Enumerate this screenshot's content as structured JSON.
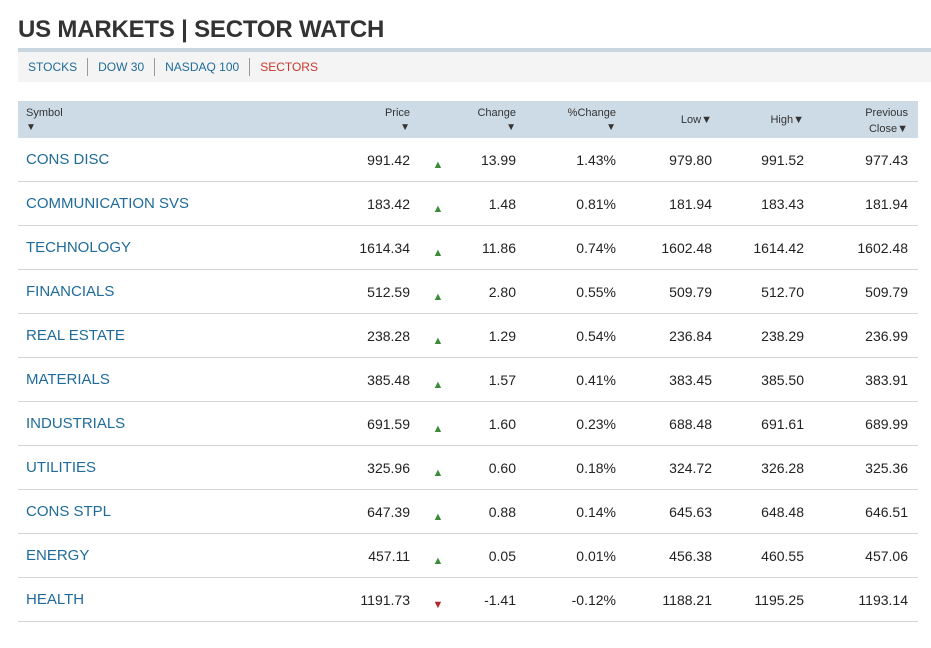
{
  "page": {
    "title": "US MARKETS | SECTOR WATCH"
  },
  "tabs": [
    {
      "label": "STOCKS",
      "active": false
    },
    {
      "label": "DOW 30",
      "active": false
    },
    {
      "label": "NASDAQ 100",
      "active": false
    },
    {
      "label": "SECTORS",
      "active": true
    }
  ],
  "colors": {
    "link": "#1f6b99",
    "active_tab": "#c8382c",
    "up": "#3c8c3c",
    "down": "#b3262c",
    "header_bg": "#ccdbe6"
  },
  "table": {
    "headers": {
      "symbol": "Symbol",
      "price": "Price",
      "change": "Change",
      "pct_change": "%Change",
      "low": "Low",
      "high": "High",
      "prev_line1": "Previous",
      "prev_line2": "Close",
      "sort_arrow": "▼"
    },
    "rows": [
      {
        "symbol": "CONS DISC",
        "price": "991.42",
        "direction": "up",
        "change": "13.99",
        "pct": "1.43%",
        "low": "979.80",
        "high": "991.52",
        "prev": "977.43"
      },
      {
        "symbol": "COMMUNICATION SVS",
        "price": "183.42",
        "direction": "up",
        "change": "1.48",
        "pct": "0.81%",
        "low": "181.94",
        "high": "183.43",
        "prev": "181.94"
      },
      {
        "symbol": "TECHNOLOGY",
        "price": "1614.34",
        "direction": "up",
        "change": "11.86",
        "pct": "0.74%",
        "low": "1602.48",
        "high": "1614.42",
        "prev": "1602.48"
      },
      {
        "symbol": "FINANCIALS",
        "price": "512.59",
        "direction": "up",
        "change": "2.80",
        "pct": "0.55%",
        "low": "509.79",
        "high": "512.70",
        "prev": "509.79"
      },
      {
        "symbol": "REAL ESTATE",
        "price": "238.28",
        "direction": "up",
        "change": "1.29",
        "pct": "0.54%",
        "low": "236.84",
        "high": "238.29",
        "prev": "236.99"
      },
      {
        "symbol": "MATERIALS",
        "price": "385.48",
        "direction": "up",
        "change": "1.57",
        "pct": "0.41%",
        "low": "383.45",
        "high": "385.50",
        "prev": "383.91"
      },
      {
        "symbol": "INDUSTRIALS",
        "price": "691.59",
        "direction": "up",
        "change": "1.60",
        "pct": "0.23%",
        "low": "688.48",
        "high": "691.61",
        "prev": "689.99"
      },
      {
        "symbol": "UTILITIES",
        "price": "325.96",
        "direction": "up",
        "change": "0.60",
        "pct": "0.18%",
        "low": "324.72",
        "high": "326.28",
        "prev": "325.36"
      },
      {
        "symbol": "CONS STPL",
        "price": "647.39",
        "direction": "up",
        "change": "0.88",
        "pct": "0.14%",
        "low": "645.63",
        "high": "648.48",
        "prev": "646.51"
      },
      {
        "symbol": "ENERGY",
        "price": "457.11",
        "direction": "up",
        "change": "0.05",
        "pct": "0.01%",
        "low": "456.38",
        "high": "460.55",
        "prev": "457.06"
      },
      {
        "symbol": "HEALTH",
        "price": "1191.73",
        "direction": "down",
        "change": "-1.41",
        "pct": "-0.12%",
        "low": "1188.21",
        "high": "1195.25",
        "prev": "1193.14"
      }
    ]
  }
}
